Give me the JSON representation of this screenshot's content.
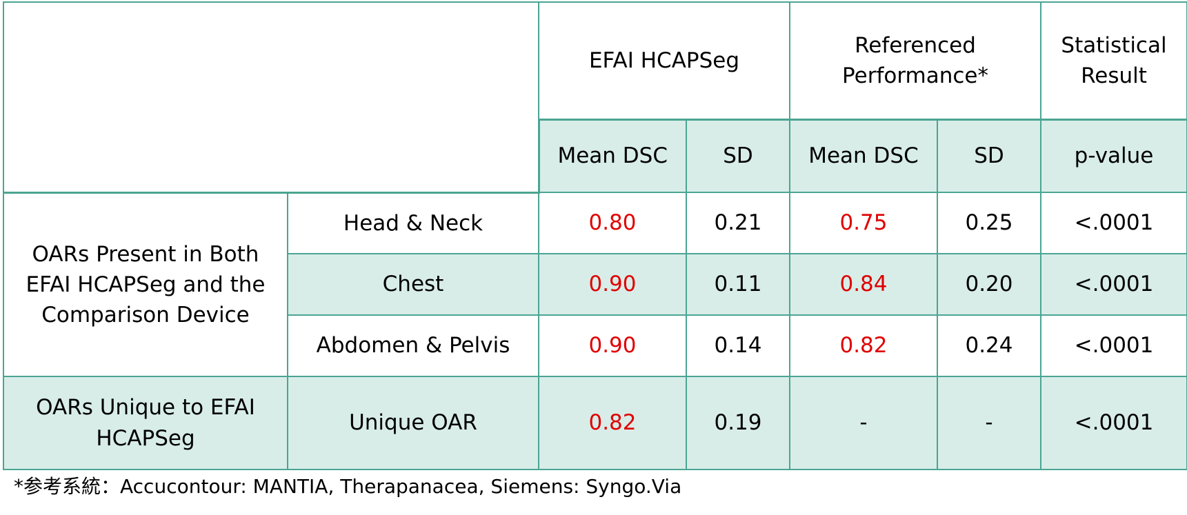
{
  "table": {
    "header": {
      "group_efai": "EFAI HCAPSeg",
      "group_ref_line1": "Referenced",
      "group_ref_line2": "Performance*",
      "group_stat_line1": "Statistical",
      "group_stat_line2": "Result",
      "sub_mean_efai": "Mean DSC",
      "sub_sd_efai": "SD",
      "sub_mean_ref": "Mean DSC",
      "sub_sd_ref": "SD",
      "sub_pvalue": "p-value"
    },
    "group_both": {
      "line1": "OARs Present in Both",
      "line2": "EFAI HCAPSeg and the",
      "line3": "Comparison Device"
    },
    "group_unique": {
      "line1": "OARs Unique to EFAI",
      "line2": "HCAPSeg"
    },
    "rows": [
      {
        "region": "Head & Neck",
        "efai_mean": "0.80",
        "efai_sd": "0.21",
        "ref_mean": "0.75",
        "ref_sd": "0.25",
        "p": "<.0001"
      },
      {
        "region": "Chest",
        "efai_mean": "0.90",
        "efai_sd": "0.11",
        "ref_mean": "0.84",
        "ref_sd": "0.20",
        "p": "<.0001"
      },
      {
        "region": "Abdomen & Pelvis",
        "efai_mean": "0.90",
        "efai_sd": "0.14",
        "ref_mean": "0.82",
        "ref_sd": "0.24",
        "p": "<.0001"
      },
      {
        "region": "Unique OAR",
        "efai_mean": "0.82",
        "efai_sd": "0.19",
        "ref_mean": "-",
        "ref_sd": "-",
        "p": "<.0001"
      }
    ],
    "colors": {
      "border": "#4aa592",
      "tint": "#d8ede8",
      "highlight": "#e00000"
    }
  },
  "footnote": "*参考系統：Accucontour: MANTIA, Therapanacea, Siemens: Syngo.Via"
}
